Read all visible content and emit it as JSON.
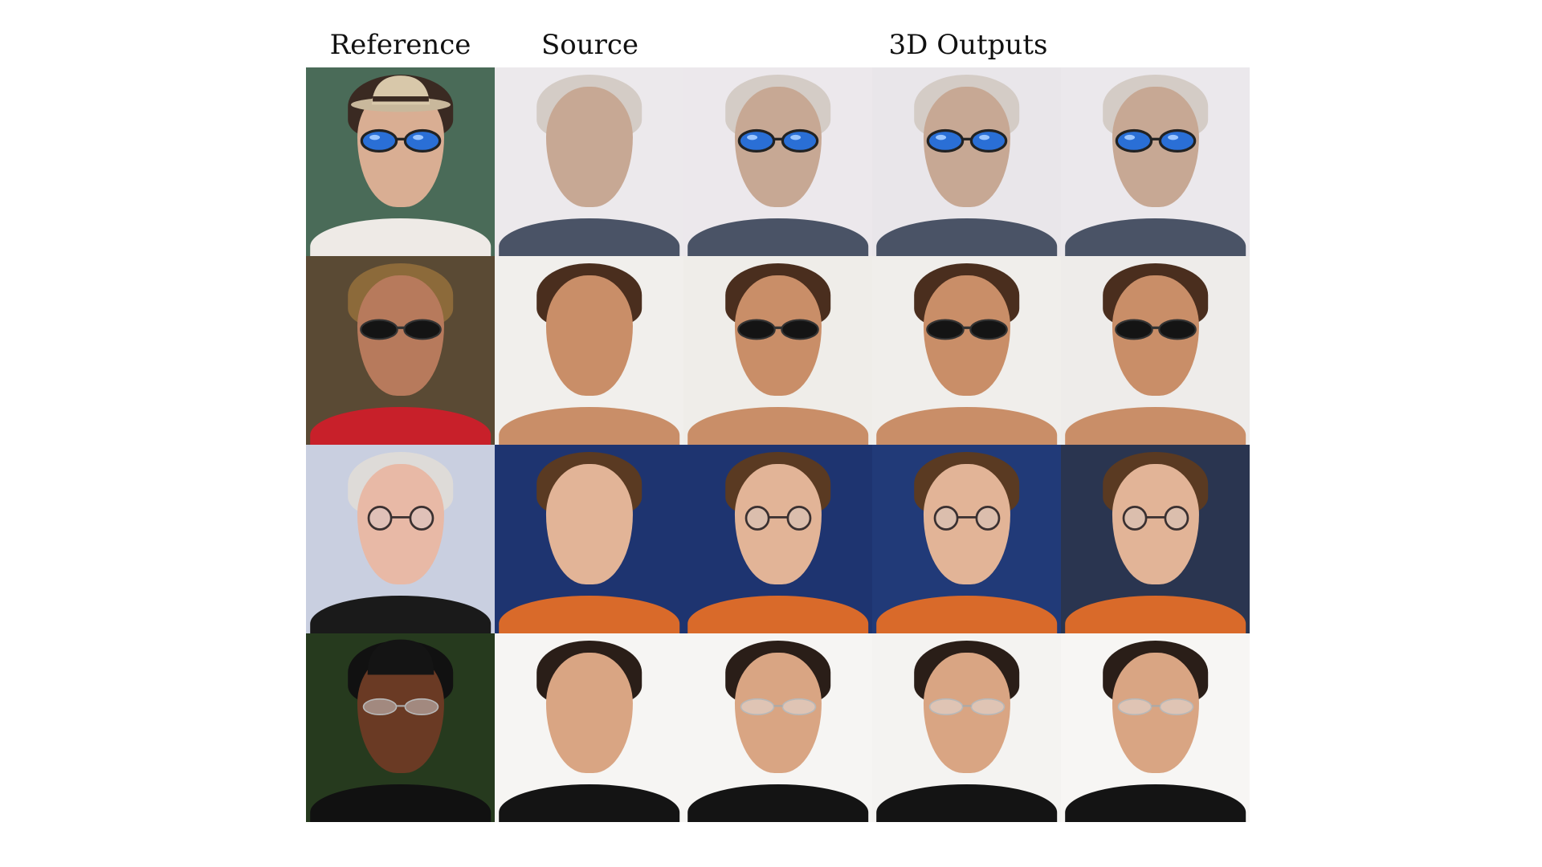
{
  "headers": {
    "reference": "Reference",
    "source": "Source",
    "outputs": "3D Outputs"
  },
  "rows": [
    {
      "reference": {
        "bg": "#4a6b58",
        "skin": "#d9ae93",
        "hair": "#3a2a22",
        "shirt": "#eeeae6",
        "accessory": "hat",
        "glasses": "blue-mirror-sunglasses"
      },
      "source": {
        "bg": "#ece9ec",
        "skin": "#c7a894",
        "hair": "#d4ccc6",
        "shirt": "#4a5366"
      },
      "outputs": [
        {
          "bg": "#ece8ec",
          "glasses": "blue-mirror-sunglasses"
        },
        {
          "bg": "#e9e6ea",
          "glasses": "blue-mirror-sunglasses"
        },
        {
          "bg": "#ebe8ec",
          "glasses": "blue-mirror-sunglasses"
        }
      ]
    },
    {
      "reference": {
        "bg": "#5a4a34",
        "skin": "#b77a5c",
        "hair": "#8c6a3a",
        "shirt": "#c8202a",
        "accessory": "none",
        "glasses": "dark-sunglasses"
      },
      "source": {
        "bg": "#f1efec",
        "skin": "#c98e68",
        "hair": "#4a2e1e",
        "shirt": "#c98e68"
      },
      "outputs": [
        {
          "bg": "#efede9",
          "glasses": "dark-sunglasses"
        },
        {
          "bg": "#f0eeeb",
          "glasses": "dark-sunglasses"
        },
        {
          "bg": "#eeecea",
          "glasses": "dark-sunglasses"
        }
      ]
    },
    {
      "reference": {
        "bg": "#c9cfe0",
        "skin": "#e8b9a6",
        "hair": "#dedbd8",
        "shirt": "#1a1a1a",
        "accessory": "none",
        "glasses": "round-clear-glasses"
      },
      "source": {
        "bg": "#1e3470",
        "skin": "#e2b497",
        "hair": "#5a3a22",
        "shirt": "#d96a2a"
      },
      "outputs": [
        {
          "bg": "#1e3470",
          "glasses": "round-clear-glasses"
        },
        {
          "bg": "#213a78",
          "glasses": "round-clear-glasses"
        },
        {
          "bg": "#2a3550",
          "glasses": "round-clear-glasses"
        }
      ]
    },
    {
      "reference": {
        "bg": "#263a1e",
        "skin": "#6a3a24",
        "hair": "#111111",
        "shirt": "#111111",
        "accessory": "beanie",
        "glasses": "rimless-glasses"
      },
      "source": {
        "bg": "#f6f5f3",
        "skin": "#d9a583",
        "hair": "#2a1e18",
        "shirt": "#141414"
      },
      "outputs": [
        {
          "bg": "#f6f5f3",
          "glasses": "rimless-glasses"
        },
        {
          "bg": "#f4f3f1",
          "glasses": "rimless-glasses"
        },
        {
          "bg": "#f7f6f4",
          "glasses": "rimless-glasses"
        }
      ]
    }
  ]
}
